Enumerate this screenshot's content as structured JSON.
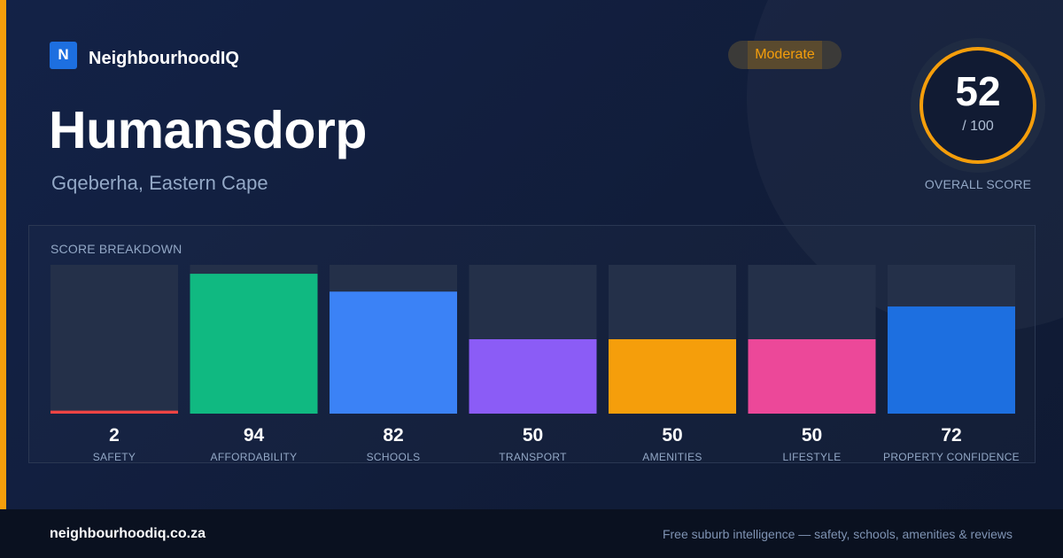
{
  "brand": {
    "logo_letter": "N",
    "name": "NeighbourhoodIQ",
    "logo_color": "#1d6fe0"
  },
  "location": {
    "title": "Humansdorp",
    "subtitle": "Gqeberha, Eastern Cape"
  },
  "rating_badge": {
    "label": "Moderate",
    "color": "#f59e0b"
  },
  "overall_score": {
    "value": "52",
    "max": "/ 100",
    "label": "OVERALL SCORE",
    "ring_color": "#f59e0b"
  },
  "breakdown": {
    "heading": "SCORE BREAKDOWN"
  },
  "chart_data": {
    "type": "bar",
    "categories": [
      "SAFETY",
      "AFFORDABILITY",
      "SCHOOLS",
      "TRANSPORT",
      "AMENITIES",
      "LIFESTYLE",
      "PROPERTY CONFIDENCE"
    ],
    "values": [
      2,
      94,
      82,
      50,
      50,
      50,
      72
    ],
    "colors": [
      "#ef4444",
      "#10b981",
      "#3b82f6",
      "#8b5cf6",
      "#f59e0b",
      "#ec4899",
      "#1d6fe0"
    ],
    "track_color": "#243049",
    "ylim": [
      0,
      100
    ]
  },
  "footer": {
    "url": "neighbourhoodiq.co.za",
    "tagline": "Free suburb intelligence — safety, schools, amenities & reviews"
  }
}
